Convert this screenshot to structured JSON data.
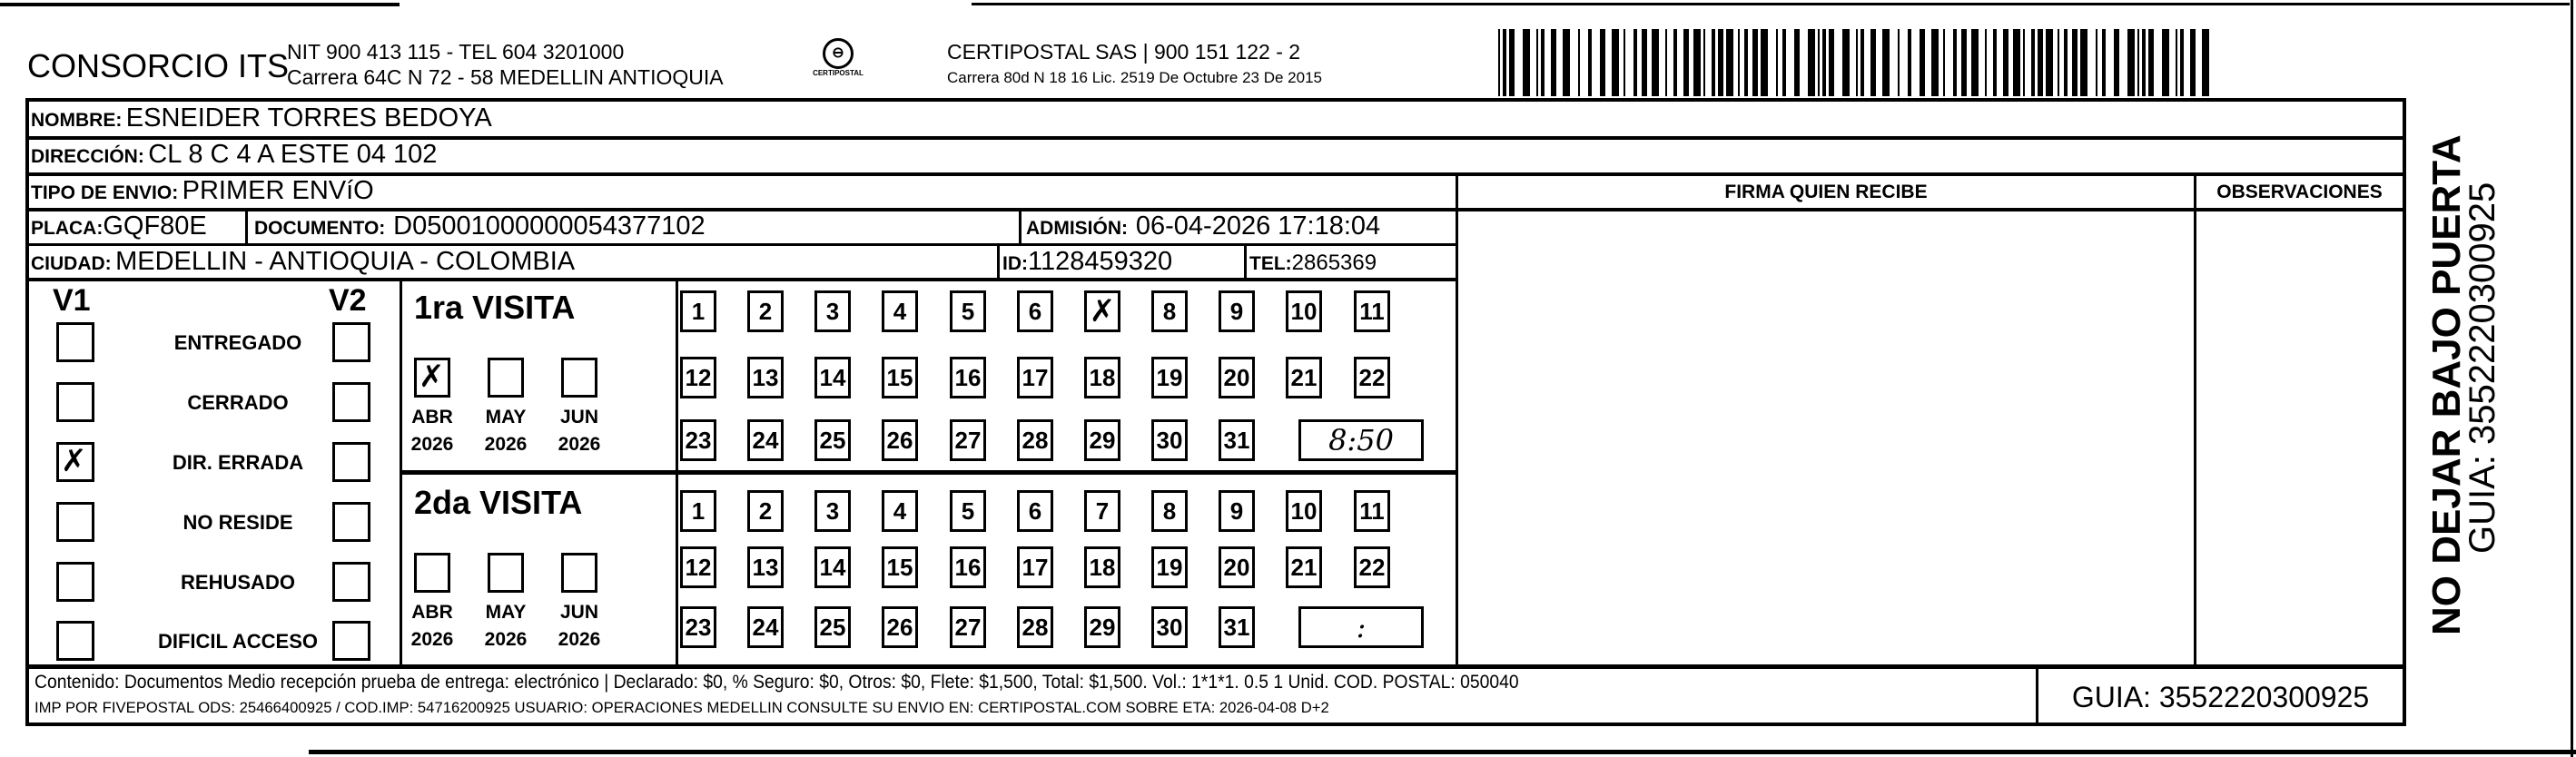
{
  "header": {
    "company": "CONSORCIO ITS",
    "company_line1": "NIT 900 413 115 - TEL 604 3201000",
    "company_line2": "Carrera 64C N 72 - 58 MEDELLIN ANTIOQUIA",
    "logo_text": "CERTIPOSTAL",
    "carrier_line1": "CERTIPOSTAL SAS | 900 151 122 - 2",
    "carrier_line2": "Carrera 80d N 18 16  Lic. 2519 De Octubre 23 De 2015"
  },
  "fields": {
    "nombre_label": "NOMBRE:",
    "nombre": "ESNEIDER TORRES BEDOYA",
    "direccion_label": "DIRECCIÓN:",
    "direccion": "CL 8 C 4 A ESTE 04 102",
    "tipo_label": "TIPO DE ENVIO:",
    "tipo": "PRIMER ENVíO",
    "placa_label": "PLACA:",
    "placa": "GQF80E",
    "documento_label": "DOCUMENTO:",
    "documento": "D05001000000054377102",
    "admision_label": "ADMISIÓN:",
    "admision": "06-04-2026 17:18:04",
    "ciudad_label": "CIUDAD:",
    "ciudad": "MEDELLIN - ANTIOQUIA - COLOMBIA",
    "id_label": "ID:",
    "id": "1128459320",
    "tel_label": "TEL:",
    "tel": "2865369"
  },
  "signature": {
    "firma_label": "FIRMA QUIEN RECIBE",
    "observaciones_label": "OBSERVACIONES"
  },
  "status": {
    "v1_label": "V1",
    "v2_label": "V2",
    "options": [
      {
        "label": "ENTREGADO",
        "v1": false,
        "v2": false
      },
      {
        "label": "CERRADO",
        "v1": false,
        "v2": false
      },
      {
        "label": "DIR. ERRADA",
        "v1": true,
        "v2": false
      },
      {
        "label": "NO RESIDE",
        "v1": false,
        "v2": false
      },
      {
        "label": "REHUSADO",
        "v1": false,
        "v2": false
      },
      {
        "label": "DIFICIL ACCESO",
        "v1": false,
        "v2": false
      }
    ]
  },
  "visits": [
    {
      "title": "1ra VISITA",
      "months": [
        {
          "m": "ABR",
          "y": "2026",
          "checked": true
        },
        {
          "m": "MAY",
          "y": "2026",
          "checked": false
        },
        {
          "m": "JUN",
          "y": "2026",
          "checked": false
        }
      ],
      "marked_day": 7,
      "time": "8:50"
    },
    {
      "title": "2da VISITA",
      "months": [
        {
          "m": "ABR",
          "y": "2026",
          "checked": false
        },
        {
          "m": "MAY",
          "y": "2026",
          "checked": false
        },
        {
          "m": "JUN",
          "y": "2026",
          "checked": false
        }
      ],
      "marked_day": null,
      "time": ":"
    }
  ],
  "footer": {
    "line1": "Contenido: Documentos Medio recepción prueba de entrega: electrónico | Declarado: $0, % Seguro: $0, Otros: $0, Flete: $1,500, Total: $1,500. Vol.: 1*1*1. 0.5  1 Unid. COD. POSTAL: 050040",
    "line2": "IMP POR FIVEPOSTAL ODS: 25466400925 / COD.IMP: 54716200925 USUARIO: OPERACIONES MEDELLIN CONSULTE SU ENVIO EN: CERTIPOSTAL.COM SOBRE ETA: 2026-04-08 D+2",
    "guia": "GUIA: 3552220300925"
  },
  "side": {
    "warning": "NO DEJAR BAJO PUERTA",
    "guia": "GUIA: 3552220300925"
  },
  "mark_symbol": "✗"
}
